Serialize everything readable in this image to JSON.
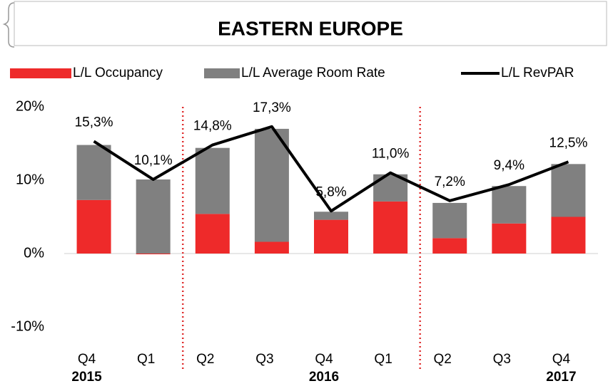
{
  "chart_data": {
    "type": "stacked-bar-line",
    "title": "EASTERN EUROPE",
    "categories": [
      "Q4",
      "Q1",
      "Q2",
      "Q3",
      "Q4",
      "Q1",
      "Q2",
      "Q3",
      "Q4"
    ],
    "year_labels": [
      "2015",
      "2016",
      "2017"
    ],
    "series": [
      {
        "name": "L/L Occupancy",
        "kind": "bar",
        "color": "#ee2a2a",
        "values": [
          7.3,
          -0.1,
          5.4,
          1.6,
          4.6,
          7.1,
          2.1,
          4.1,
          5.0
        ]
      },
      {
        "name": "L/L Average Room Rate",
        "kind": "bar",
        "color": "#808080",
        "values": [
          7.5,
          10.1,
          9.0,
          15.4,
          1.1,
          3.7,
          4.8,
          5.1,
          7.2
        ]
      },
      {
        "name": "L/L RevPAR",
        "kind": "line",
        "color": "#000000",
        "values": [
          15.3,
          10.1,
          14.8,
          17.3,
          5.8,
          11.0,
          7.2,
          9.4,
          12.5
        ],
        "value_labels": [
          "15,3%",
          "10,1%",
          "14,8%",
          "17,3%",
          "5,8%",
          "11,0%",
          "7,2%",
          "9,4%",
          "12,5%"
        ]
      }
    ],
    "ylim": [
      -10,
      20
    ],
    "yticks": [
      {
        "value": -10,
        "label": "-10%"
      },
      {
        "value": 0,
        "label": "0%"
      },
      {
        "value": 10,
        "label": "10%"
      },
      {
        "value": 20,
        "label": "20%"
      }
    ],
    "legend": "top"
  }
}
